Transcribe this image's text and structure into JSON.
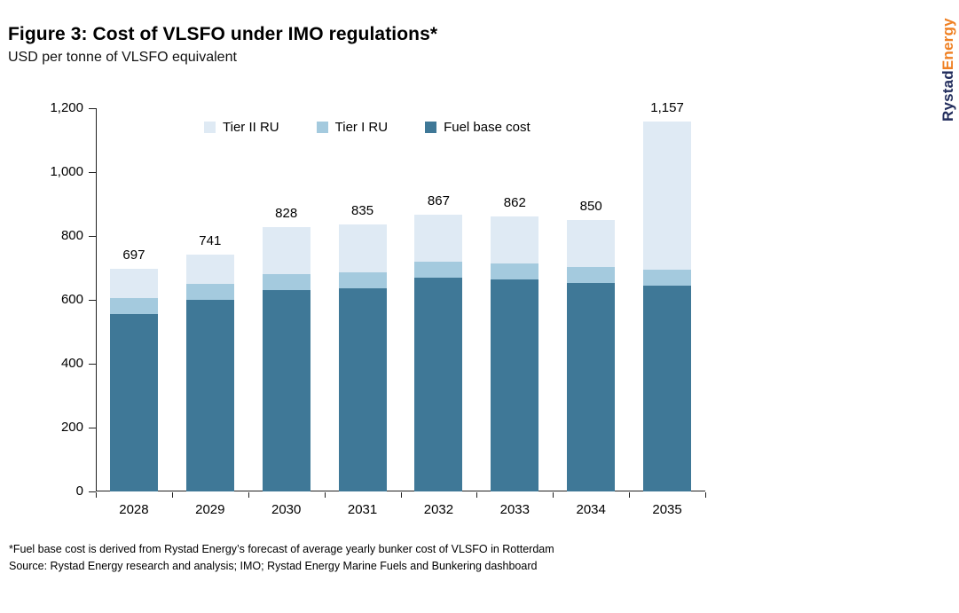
{
  "header": {
    "title": "Figure 3: Cost of VLSFO under IMO regulations*",
    "subtitle": "USD per tonne of VLSFO equivalent"
  },
  "logo": {
    "part1": "Rystad",
    "part2": "Energy",
    "part1_color": "#222d5c",
    "part2_color": "#ef8023"
  },
  "chart_data": {
    "type": "bar",
    "stacked": true,
    "title": "Figure 3: Cost of VLSFO under IMO regulations*",
    "units_label": "USD per tonne of VLSFO equivalent",
    "categories": [
      "2028",
      "2029",
      "2030",
      "2031",
      "2032",
      "2033",
      "2034",
      "2035"
    ],
    "series": [
      {
        "name": "Fuel base cost",
        "color": "#3f7897",
        "values": [
          555,
          600,
          630,
          637,
          669,
          663,
          653,
          645
        ]
      },
      {
        "name": "Tier I RU",
        "color": "#a4cade",
        "values": [
          50,
          50,
          50,
          50,
          50,
          50,
          50,
          50
        ]
      },
      {
        "name": "Tier II RU",
        "color": "#dfeaf4",
        "values": [
          92,
          91,
          148,
          148,
          148,
          149,
          147,
          462
        ]
      }
    ],
    "totals": [
      "697",
      "741",
      "828",
      "835",
      "867",
      "862",
      "850",
      "1,157"
    ],
    "total_values": [
      697,
      741,
      828,
      835,
      867,
      862,
      850,
      1157
    ],
    "ylim": [
      0,
      1200
    ],
    "ytick_step": 200,
    "yticks": [
      "0",
      "200",
      "400",
      "600",
      "800",
      "1,000",
      "1,200"
    ],
    "grid": false,
    "legend_position": "top-inside",
    "legend_order": [
      "Tier II RU",
      "Tier I RU",
      "Fuel base cost"
    ]
  },
  "footnotes": {
    "line1": "*Fuel base cost is derived from Rystad Energy’s forecast of average yearly bunker cost of VLSFO in Rotterdam",
    "line2": "Source: Rystad Energy research and analysis; IMO; Rystad Energy Marine Fuels and Bunkering dashboard"
  }
}
